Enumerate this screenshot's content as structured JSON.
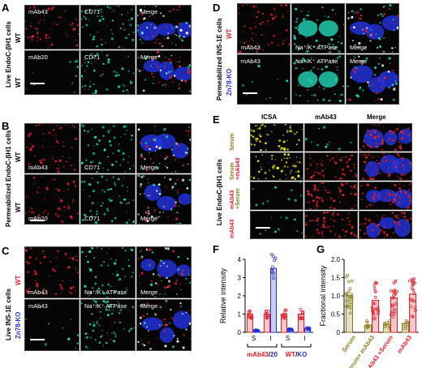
{
  "panels": {
    "A": {
      "letter": "A",
      "side_label": "Live EndoC-βH1 cells",
      "rows": [
        {
          "condition": "WT",
          "channels": [
            "mAb43",
            "CD71",
            "Merge"
          ]
        },
        {
          "condition": "WT",
          "channels": [
            "mAb20",
            "CD71",
            "Merge"
          ]
        }
      ],
      "scale": "10 μm"
    },
    "B": {
      "letter": "B",
      "side_label": "Permeabilized EndoC-βH1 cells",
      "rows": [
        {
          "condition": "WT",
          "channels": [
            "mAb43",
            "CD71",
            "Merge"
          ]
        },
        {
          "condition": "WT",
          "channels": [
            "mAb20",
            "CD71",
            "Merge"
          ]
        }
      ],
      "scale": "10 μm"
    },
    "C": {
      "letter": "C",
      "side_label": "Live INS-1E cells",
      "row_labels": [
        "WT",
        "Zn78-KO"
      ],
      "rows": [
        {
          "channels": [
            "mAb43",
            "Na⁺/K⁺ ATPase",
            "Merge"
          ]
        },
        {
          "channels": [
            "mAb43",
            "Na⁺/K⁺ ATPase",
            "Merge"
          ]
        }
      ],
      "scale": "10 μm"
    },
    "D": {
      "letter": "D",
      "side_label": "Permeabilized INS-1E cells",
      "row_labels": [
        "WT",
        "Zn78-KO"
      ],
      "rows": [
        {
          "channels": [
            "mAb43",
            "Na⁺/K⁺ ATPase",
            "Merge"
          ]
        },
        {
          "channels": [
            "mAb43",
            "Na⁺/K⁺ ATPase",
            "Merge"
          ]
        }
      ],
      "scale": "10 μm"
    },
    "E": {
      "letter": "E",
      "side_label": "Live EndoC-βH1 cells",
      "column_headers": [
        "ICSA",
        "mAb43",
        "Merge"
      ],
      "row_labels": [
        {
          "top": "Serum",
          "bottom": ""
        },
        {
          "top": "Serum",
          "bottom": "+mAb43"
        },
        {
          "top": "mAb43",
          "bottom": "+Serum"
        },
        {
          "top": "mAb43",
          "bottom": ""
        }
      ],
      "scale": "10 μm"
    },
    "F": {
      "letter": "F",
      "ylabel": "Relative intensity",
      "x_ticks": [
        "S",
        "I",
        "S",
        "I"
      ],
      "group1": {
        "a": "mAb43",
        "sep": "/",
        "b": "20"
      },
      "group2": {
        "a": "WT",
        "sep": "/",
        "b": "KO"
      }
    },
    "G": {
      "letter": "G",
      "ylabel": "Fractional intensity",
      "categories": [
        "Serum",
        "Serum+ mAb43",
        "mAb43 +Serum",
        "mAb43"
      ]
    }
  },
  "colors": {
    "red": "#e3202a",
    "cyan": "#22d6b8",
    "blue": "#2231d8",
    "olive": "#8a7d1e",
    "yellow": "#e8e21a"
  },
  "chart_data": [
    {
      "type": "bar",
      "panel": "F",
      "categories": [
        "S",
        "I",
        "S",
        "I"
      ],
      "series": [
        {
          "values": [
            1.0,
            1.0,
            1.0,
            1.0
          ]
        },
        {
          "values": [
            0.1,
            3.5,
            0.15,
            0.2
          ]
        }
      ],
      "ylabel": "Relative intensity",
      "ylim": [
        0,
        4
      ],
      "yticks": [
        0,
        1,
        2,
        3,
        4
      ],
      "grid": false
    },
    {
      "type": "bar",
      "panel": "G",
      "categories": [
        "Serum",
        "Serum+ mAb43",
        "mAb43 +Serum",
        "mAb43"
      ],
      "series": [
        {
          "values": [
            1.0,
            0.2,
            0.22,
            0.25
          ]
        },
        {
          "values": [
            0.0,
            0.88,
            0.95,
            1.05
          ]
        }
      ],
      "ylabel": "Fractional intensity",
      "ylim": [
        0,
        2
      ],
      "yticks": [
        0,
        0.5,
        1.0,
        1.5,
        2.0
      ],
      "ytick_labels": [
        "0",
        "0.5",
        "1.0",
        "1.5",
        "2.0"
      ],
      "grid": false
    }
  ]
}
